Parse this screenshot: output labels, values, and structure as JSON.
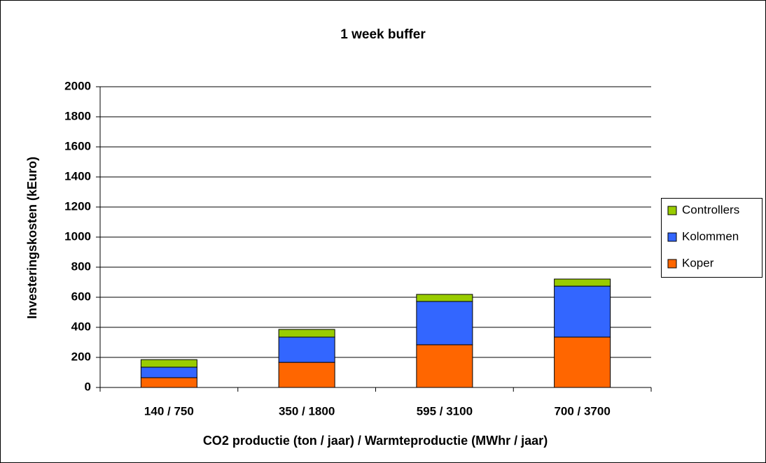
{
  "chart_data": {
    "type": "stacked_bar",
    "title": "1 week buffer",
    "x_label": "CO2 productie (ton / jaar) / Warmteproductie (MWhr / jaar)",
    "y_label": "Investeringskosten (kEuro)",
    "categories": [
      "140 / 750",
      "350 / 1800",
      "595 / 3100",
      "700 / 3700"
    ],
    "series": [
      {
        "name": "Koper",
        "color": "#ff6600",
        "values": [
          65,
          167,
          284,
          335
        ]
      },
      {
        "name": "Kolommen",
        "color": "#3366ff",
        "values": [
          70,
          168,
          288,
          339
        ]
      },
      {
        "name": "Controllers",
        "color": "#99cc00",
        "values": [
          50,
          51,
          47,
          47
        ]
      }
    ],
    "ylim": [
      0,
      2000
    ],
    "yticks": [
      0,
      200,
      400,
      600,
      800,
      1000,
      1200,
      1400,
      1600,
      1800,
      2000
    ],
    "grid": true,
    "legend": "right"
  }
}
